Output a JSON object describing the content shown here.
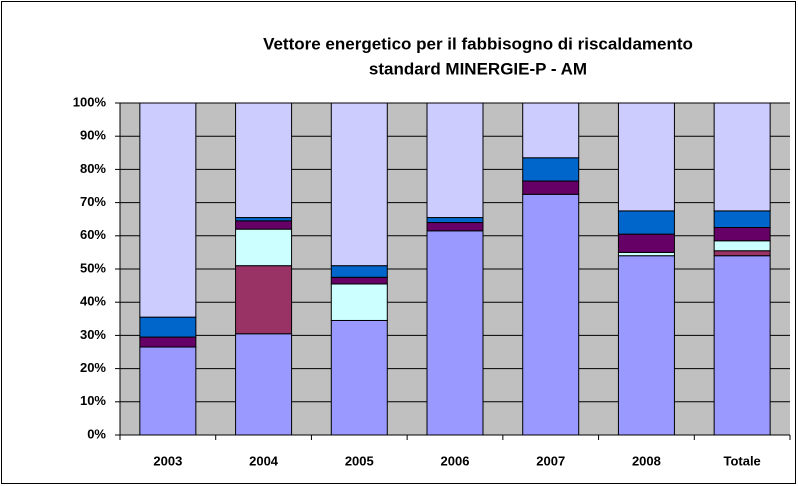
{
  "chart_data": {
    "type": "stacked_bar",
    "title": [
      "Vettore energetico per il fabbisogno di riscaldamento",
      "standard MINERGIE-P - AM"
    ],
    "categories": [
      "2003",
      "2004",
      "2005",
      "2006",
      "2007",
      "2008",
      "Totale"
    ],
    "series": [
      {
        "color": "#9999ff",
        "values": [
          26.5,
          30.5,
          34.5,
          61.5,
          72.5,
          54,
          54
        ]
      },
      {
        "color": "#993366",
        "values": [
          0,
          20.5,
          0,
          0,
          0,
          0,
          1.5
        ]
      },
      {
        "color": "#ccffff",
        "values": [
          0,
          11,
          11,
          0,
          0,
          1,
          3
        ]
      },
      {
        "color": "#660066",
        "values": [
          3,
          2.5,
          2,
          2.5,
          4,
          5.5,
          4
        ]
      },
      {
        "color": "#0066cc",
        "values": [
          6,
          1,
          3.5,
          1.5,
          7,
          7,
          5
        ]
      },
      {
        "color": "#ccccff",
        "values": [
          64.5,
          34.5,
          49,
          34.5,
          16.5,
          32.5,
          32.5
        ]
      }
    ],
    "ylim": [
      0,
      100
    ],
    "yticks": [
      {
        "value": 0,
        "label": "0%"
      },
      {
        "value": 10,
        "label": "10%"
      },
      {
        "value": 20,
        "label": "20%"
      },
      {
        "value": 30,
        "label": "30%"
      },
      {
        "value": 40,
        "label": "40%"
      },
      {
        "value": 50,
        "label": "50%"
      },
      {
        "value": 60,
        "label": "60%"
      },
      {
        "value": 70,
        "label": "70%"
      },
      {
        "value": 80,
        "label": "80%"
      },
      {
        "value": 90,
        "label": "90%"
      },
      {
        "value": 100,
        "label": "100%"
      }
    ],
    "grid": true,
    "plot_background": "#c0c0c0"
  }
}
